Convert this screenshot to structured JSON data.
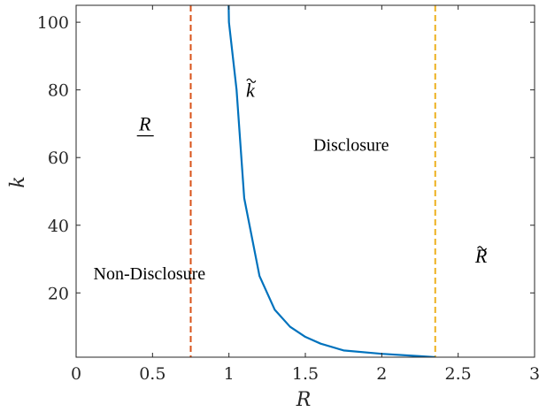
{
  "chart_data": {
    "type": "line",
    "title": "",
    "xlabel": "R",
    "ylabel": "k",
    "xlim": [
      0,
      3
    ],
    "ylim": [
      1,
      105
    ],
    "x_ticks": [
      0,
      0.5,
      1,
      1.5,
      2,
      2.5,
      3
    ],
    "x_tick_labels": [
      "0",
      "0.5",
      "1",
      "1.5",
      "2",
      "2.5",
      "3"
    ],
    "y_ticks": [
      20,
      40,
      60,
      80,
      100
    ],
    "y_tick_labels": [
      "20",
      "40",
      "60",
      "80",
      "100"
    ],
    "grid": false,
    "series": [
      {
        "name": "",
        "color": "#0072BD",
        "x": [
          0.99,
          1.0,
          1.05,
          1.1,
          1.2,
          1.3,
          1.4,
          1.5,
          1.6,
          1.75,
          2.0,
          2.25,
          2.35
        ],
        "y": [
          125,
          100,
          80,
          48,
          25,
          15,
          10,
          7,
          5,
          3,
          2,
          1.3,
          1
        ]
      }
    ],
    "vertical_lines": [
      {
        "x": 0.75,
        "color": "#D95319",
        "style": "dashed"
      },
      {
        "x": 2.35,
        "color": "#EDB120",
        "style": "dashed"
      }
    ],
    "annotations": [
      {
        "id": "r_low",
        "text": "R",
        "x": 0.45,
        "y": 68
      },
      {
        "id": "k_tilde",
        "text": "k",
        "x": 1.14,
        "y": 78
      },
      {
        "id": "disclosure",
        "text": "Disclosure",
        "x": 1.8,
        "y": 62
      },
      {
        "id": "non_disclosure",
        "text": "Non-Disclosure",
        "x": 0.48,
        "y": 24
      },
      {
        "id": "r_tilde",
        "text": "R",
        "x": 2.65,
        "y": 29
      }
    ]
  }
}
